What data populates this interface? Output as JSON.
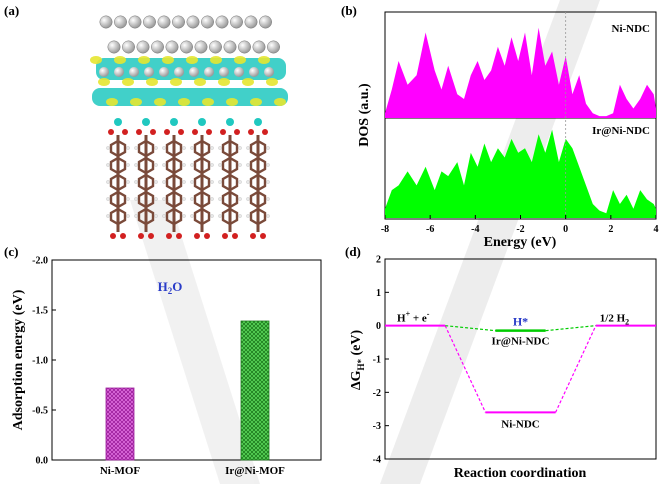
{
  "panels": {
    "a": {
      "label": "(a)"
    },
    "b": {
      "label": "(b)"
    },
    "c": {
      "label": "(c)"
    },
    "d": {
      "label": "(d)"
    }
  },
  "colors": {
    "magenta": "#ff00ff",
    "green": "#00ff00",
    "bar_magenta": "#d23ad2",
    "bar_green": "#3ac83a",
    "ni_atom": "#b9b9b9",
    "cyan_density": "#20c8c0",
    "yellow_density": "#e6e630",
    "oxygen": "#d22020",
    "carbon": "#7a4a3a",
    "hydrogen": "#e8e8e8",
    "title_blue": "#2a3cc8",
    "watermark": "#cfcfcf"
  },
  "chart_data": [
    {
      "panel": "b",
      "type": "area",
      "xlabel": "Energy (eV)",
      "ylabel": "DOS (a.u.)",
      "xlim": [
        -8,
        4
      ],
      "xticks": [
        "-8",
        "-6",
        "-4",
        "-2",
        "0",
        "2",
        "4"
      ],
      "fermi_line_x": 0,
      "series": [
        {
          "name": "Ni-NDC",
          "color": "#ff00ff",
          "x": [
            -8,
            -7.7,
            -7.4,
            -7.0,
            -6.6,
            -6.2,
            -5.8,
            -5.5,
            -5.2,
            -4.8,
            -4.5,
            -4.2,
            -3.9,
            -3.6,
            -3.3,
            -3.0,
            -2.7,
            -2.4,
            -2.1,
            -1.8,
            -1.5,
            -1.2,
            -0.9,
            -0.6,
            -0.3,
            0.0,
            0.3,
            0.6,
            0.9,
            1.2,
            1.5,
            1.8,
            2.1,
            2.4,
            2.7,
            3.0,
            3.3,
            3.6,
            3.9,
            4.0
          ],
          "y": [
            0.05,
            0.3,
            0.6,
            0.35,
            0.45,
            0.9,
            0.5,
            0.3,
            0.55,
            0.25,
            0.2,
            0.45,
            0.6,
            0.4,
            0.5,
            0.75,
            0.55,
            0.85,
            0.6,
            0.9,
            0.45,
            0.95,
            0.55,
            0.7,
            0.35,
            0.65,
            0.25,
            0.45,
            0.15,
            0.05,
            0.02,
            0.02,
            0.05,
            0.35,
            0.2,
            0.1,
            0.2,
            0.35,
            0.25,
            0.1
          ]
        },
        {
          "name": "Ir@Ni-NDC",
          "color": "#00ff00",
          "x": [
            -8,
            -7.7,
            -7.4,
            -7.0,
            -6.6,
            -6.2,
            -5.8,
            -5.5,
            -5.2,
            -4.8,
            -4.5,
            -4.2,
            -3.9,
            -3.6,
            -3.3,
            -3.0,
            -2.7,
            -2.4,
            -2.1,
            -1.8,
            -1.5,
            -1.2,
            -0.9,
            -0.6,
            -0.3,
            0.0,
            0.3,
            0.6,
            0.9,
            1.2,
            1.5,
            1.8,
            2.1,
            2.4,
            2.7,
            3.0,
            3.3,
            3.6,
            3.9,
            4.0
          ],
          "y": [
            0.1,
            0.3,
            0.35,
            0.5,
            0.35,
            0.55,
            0.3,
            0.5,
            0.45,
            0.6,
            0.35,
            0.7,
            0.55,
            0.8,
            0.6,
            0.75,
            0.65,
            0.85,
            0.7,
            0.75,
            0.6,
            0.9,
            0.7,
            0.95,
            0.6,
            0.85,
            0.75,
            0.55,
            0.35,
            0.15,
            0.08,
            0.05,
            0.3,
            0.15,
            0.25,
            0.1,
            0.3,
            0.2,
            0.15,
            0.1
          ]
        }
      ]
    },
    {
      "panel": "c",
      "type": "bar",
      "title": "H₂O",
      "ylabel": "Adsorption energy (eV)",
      "ylim": [
        0.0,
        -2.0
      ],
      "yticks": [
        "0.0",
        "-0.5",
        "-1.0",
        "-1.5",
        "-2.0"
      ],
      "categories": [
        "Ni-MOF",
        "Ir@Ni-MOF"
      ],
      "values": [
        -0.72,
        -1.39
      ]
    },
    {
      "panel": "d",
      "type": "line",
      "xlabel": "Reaction coordination",
      "ylabel": "ΔG",
      "ylabel_sub": "H*",
      "ylabel_unit": " (eV)",
      "ylim": [
        -4,
        2
      ],
      "yticks": [
        "2",
        "1",
        "0",
        "-1",
        "-2",
        "-3",
        "-4"
      ],
      "states": [
        {
          "name": "initial",
          "label": "H",
          "label_sup": "+",
          "label_tail": " + e",
          "label_tail_sup": "-",
          "x_start": 0.0,
          "x_end": 1.0,
          "value": 0.0
        },
        {
          "name": "intermediate",
          "x_start": 2.0,
          "x_end": 3.0,
          "value": 0.0
        },
        {
          "name": "final",
          "label": "1/2 H",
          "label_sub": "2",
          "x_start": 4.0,
          "x_end": 5.0,
          "value": 0.0
        }
      ],
      "series": [
        {
          "name": "Ir@Ni-NDC",
          "color": "#00cc00",
          "intermediate_value": -0.15
        },
        {
          "name": "Ni-NDC",
          "color": "#ff00ff",
          "intermediate_value": -2.6
        }
      ],
      "intermediate_label": "H*"
    }
  ]
}
